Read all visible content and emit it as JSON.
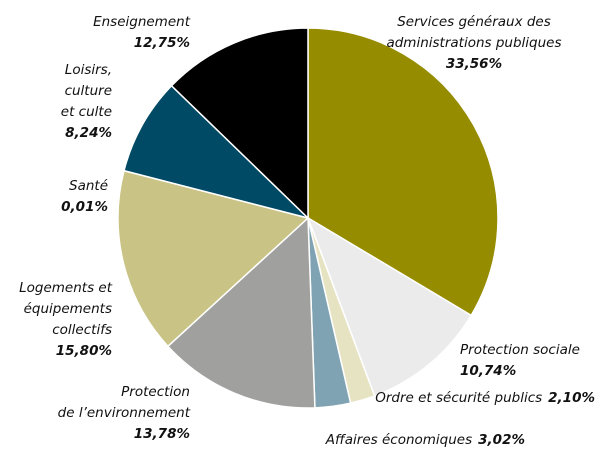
{
  "chart_data": {
    "type": "pie",
    "categories": [
      "Services généraux des\nadministrations publiques",
      "Protection sociale",
      "Ordre et sécurité publics",
      "Affaires économiques",
      "Protection\nde l’environnement",
      "Logements et\néquipements\ncollectifs",
      "Santé",
      "Loisirs,\nculture\net culte",
      "Enseignement"
    ],
    "values": [
      33.56,
      10.74,
      2.1,
      3.02,
      13.78,
      15.8,
      0.01,
      8.24,
      12.75
    ],
    "value_labels": [
      "33,56%",
      "10,74%",
      "2,10%",
      "3,02%",
      "13,78%",
      "15,80%",
      "0,01%",
      "8,24%",
      "12,75%"
    ],
    "colors": [
      "#968c00",
      "#ebebeb",
      "#e6e3c3",
      "#7fa3b3",
      "#a0a09e",
      "#c9c486",
      "#c9c486",
      "#004a66",
      "#000000"
    ]
  }
}
